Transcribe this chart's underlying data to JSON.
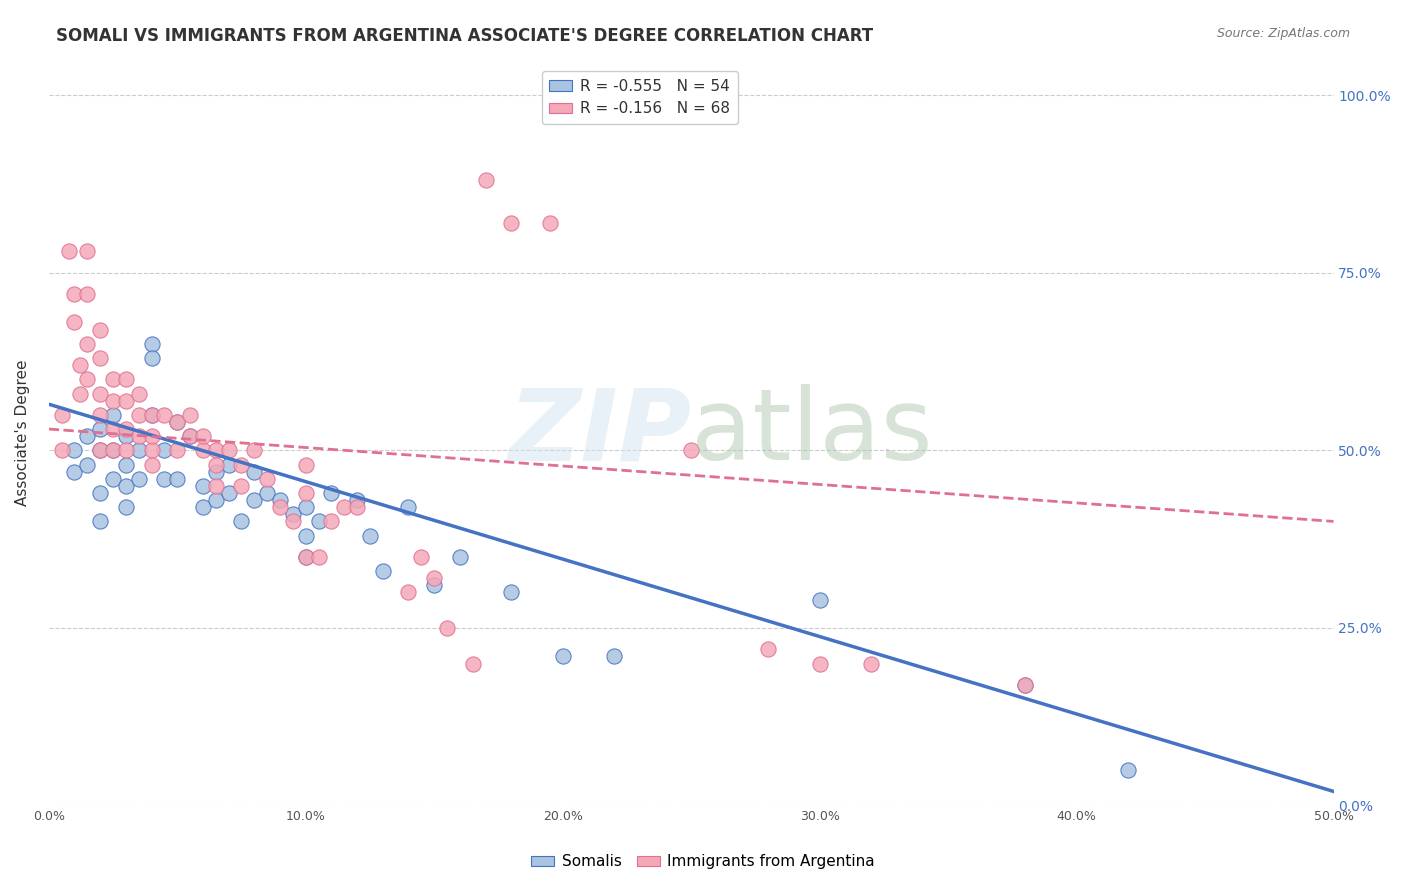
{
  "title": "SOMALI VS IMMIGRANTS FROM ARGENTINA ASSOCIATE'S DEGREE CORRELATION CHART",
  "source": "Source: ZipAtlas.com",
  "ylabel": "Associate's Degree",
  "ytick_values": [
    0.0,
    0.25,
    0.5,
    0.75,
    1.0
  ],
  "xlim": [
    0.0,
    0.5
  ],
  "ylim": [
    0.0,
    1.05
  ],
  "legend_entry1": "R = -0.555   N = 54",
  "legend_entry2": "R = -0.156   N = 68",
  "somali_color": "#a8c4e0",
  "argentina_color": "#f4a8b8",
  "somali_line_color": "#4472c4",
  "argentina_line_color": "#e07090",
  "somali_scatter_x": [
    0.01,
    0.01,
    0.015,
    0.015,
    0.02,
    0.02,
    0.02,
    0.02,
    0.025,
    0.025,
    0.025,
    0.03,
    0.03,
    0.03,
    0.03,
    0.035,
    0.035,
    0.04,
    0.04,
    0.04,
    0.045,
    0.045,
    0.05,
    0.05,
    0.055,
    0.06,
    0.06,
    0.065,
    0.065,
    0.07,
    0.07,
    0.075,
    0.08,
    0.08,
    0.085,
    0.09,
    0.095,
    0.1,
    0.1,
    0.1,
    0.105,
    0.11,
    0.12,
    0.125,
    0.13,
    0.14,
    0.15,
    0.16,
    0.18,
    0.2,
    0.22,
    0.3,
    0.38,
    0.42
  ],
  "somali_scatter_y": [
    0.5,
    0.47,
    0.52,
    0.48,
    0.53,
    0.5,
    0.44,
    0.4,
    0.55,
    0.5,
    0.46,
    0.52,
    0.48,
    0.45,
    0.42,
    0.5,
    0.46,
    0.65,
    0.63,
    0.55,
    0.5,
    0.46,
    0.54,
    0.46,
    0.52,
    0.45,
    0.42,
    0.47,
    0.43,
    0.48,
    0.44,
    0.4,
    0.47,
    0.43,
    0.44,
    0.43,
    0.41,
    0.42,
    0.38,
    0.35,
    0.4,
    0.44,
    0.43,
    0.38,
    0.33,
    0.42,
    0.31,
    0.35,
    0.3,
    0.21,
    0.21,
    0.29,
    0.17,
    0.05
  ],
  "argentina_scatter_x": [
    0.005,
    0.005,
    0.008,
    0.01,
    0.01,
    0.012,
    0.012,
    0.015,
    0.015,
    0.015,
    0.015,
    0.02,
    0.02,
    0.02,
    0.02,
    0.02,
    0.025,
    0.025,
    0.025,
    0.025,
    0.03,
    0.03,
    0.03,
    0.03,
    0.035,
    0.035,
    0.035,
    0.04,
    0.04,
    0.04,
    0.04,
    0.045,
    0.05,
    0.05,
    0.055,
    0.055,
    0.06,
    0.06,
    0.065,
    0.065,
    0.065,
    0.07,
    0.075,
    0.075,
    0.08,
    0.085,
    0.09,
    0.095,
    0.1,
    0.1,
    0.1,
    0.105,
    0.11,
    0.115,
    0.12,
    0.14,
    0.145,
    0.15,
    0.155,
    0.165,
    0.17,
    0.18,
    0.195,
    0.25,
    0.28,
    0.3,
    0.32,
    0.38
  ],
  "argentina_scatter_y": [
    0.55,
    0.5,
    0.78,
    0.72,
    0.68,
    0.62,
    0.58,
    0.78,
    0.72,
    0.65,
    0.6,
    0.67,
    0.63,
    0.58,
    0.55,
    0.5,
    0.6,
    0.57,
    0.53,
    0.5,
    0.6,
    0.57,
    0.53,
    0.5,
    0.58,
    0.55,
    0.52,
    0.55,
    0.5,
    0.52,
    0.48,
    0.55,
    0.54,
    0.5,
    0.55,
    0.52,
    0.5,
    0.52,
    0.5,
    0.48,
    0.45,
    0.5,
    0.48,
    0.45,
    0.5,
    0.46,
    0.42,
    0.4,
    0.48,
    0.44,
    0.35,
    0.35,
    0.4,
    0.42,
    0.42,
    0.3,
    0.35,
    0.32,
    0.25,
    0.2,
    0.88,
    0.82,
    0.82,
    0.5,
    0.22,
    0.2,
    0.2,
    0.17
  ],
  "somali_line_x": [
    0.0,
    0.5
  ],
  "somali_line_y": [
    0.565,
    0.02
  ],
  "argentina_line_x": [
    0.0,
    0.5
  ],
  "argentina_line_y": [
    0.53,
    0.4
  ]
}
